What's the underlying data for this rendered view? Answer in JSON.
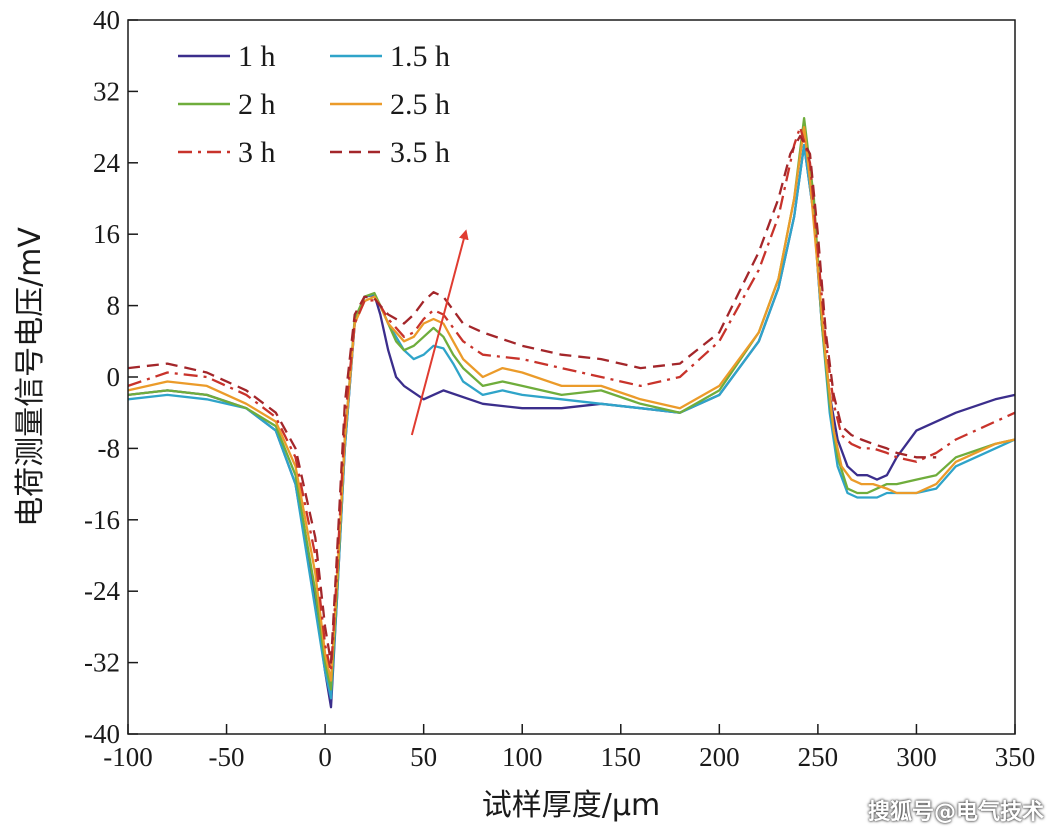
{
  "chart_data": {
    "type": "line",
    "title": "",
    "xlabel": "试样厚度/μm",
    "ylabel": "电荷测量信号电压/mV",
    "xlim": [
      -100,
      350
    ],
    "ylim": [
      -40,
      40
    ],
    "xticks": [
      -100,
      -50,
      0,
      50,
      100,
      150,
      200,
      250,
      300,
      350
    ],
    "yticks": [
      -40,
      -32,
      -24,
      -16,
      -8,
      0,
      8,
      16,
      24,
      32,
      40
    ],
    "grid": false,
    "legend_position": "top-left",
    "annotations": [
      {
        "type": "arrow",
        "from": [
          44,
          -6.5
        ],
        "to": [
          71,
          16
        ],
        "color": "#e03c31"
      }
    ],
    "series": [
      {
        "name": "1 h",
        "color": "#3b2e8c",
        "style": "solid",
        "x": [
          -100,
          -80,
          -60,
          -40,
          -25,
          -15,
          -5,
          0,
          3,
          6,
          10,
          15,
          20,
          25,
          28,
          32,
          36,
          40,
          50,
          60,
          80,
          100,
          120,
          140,
          160,
          180,
          200,
          220,
          230,
          238,
          243,
          248,
          252,
          256,
          260,
          265,
          270,
          275,
          280,
          285,
          290,
          300,
          320,
          340,
          350
        ],
        "y": [
          -2,
          -1.5,
          -2,
          -3.5,
          -6,
          -12,
          -25,
          -33,
          -37,
          -25,
          -8,
          6,
          9,
          9.2,
          7,
          3,
          0,
          -1,
          -2.5,
          -1.5,
          -3,
          -3.5,
          -3.5,
          -3,
          -3.5,
          -4,
          -2,
          4,
          10,
          18,
          26,
          18,
          6,
          -2,
          -7,
          -10,
          -11,
          -11,
          -11.5,
          -11,
          -9,
          -6,
          -4,
          -2.5,
          -2
        ]
      },
      {
        "name": "1.5 h",
        "color": "#2fa4c9",
        "style": "solid",
        "x": [
          -100,
          -80,
          -60,
          -40,
          -25,
          -15,
          -5,
          0,
          3,
          6,
          10,
          15,
          20,
          25,
          28,
          32,
          36,
          40,
          45,
          50,
          55,
          60,
          65,
          70,
          80,
          90,
          100,
          120,
          140,
          160,
          180,
          200,
          220,
          230,
          238,
          243,
          248,
          252,
          256,
          260,
          265,
          270,
          275,
          280,
          285,
          290,
          300,
          310,
          320,
          340,
          350
        ],
        "y": [
          -2.5,
          -2,
          -2.5,
          -3.5,
          -6,
          -12,
          -26,
          -33,
          -36,
          -25,
          -8,
          6,
          9,
          9.3,
          8,
          6,
          4.5,
          3,
          2,
          2.5,
          3.5,
          3.2,
          1.5,
          -0.5,
          -2,
          -1.5,
          -2,
          -2.5,
          -3,
          -3.5,
          -4,
          -2,
          4,
          10,
          18,
          26,
          18,
          6,
          -4,
          -10,
          -13,
          -13.5,
          -13.5,
          -13.5,
          -13,
          -13,
          -13,
          -12.5,
          -10,
          -8,
          -7
        ]
      },
      {
        "name": "2 h",
        "color": "#6fad3c",
        "style": "solid",
        "x": [
          -100,
          -80,
          -60,
          -40,
          -25,
          -15,
          -5,
          0,
          3,
          6,
          10,
          15,
          20,
          25,
          28,
          32,
          36,
          40,
          45,
          50,
          55,
          60,
          65,
          70,
          80,
          90,
          100,
          120,
          140,
          160,
          180,
          200,
          220,
          230,
          238,
          243,
          248,
          252,
          256,
          260,
          265,
          270,
          275,
          280,
          285,
          290,
          300,
          310,
          320,
          340,
          350
        ],
        "y": [
          -2,
          -1.5,
          -2,
          -3.5,
          -5.5,
          -11,
          -24,
          -32,
          -35,
          -24,
          -7,
          6.5,
          9,
          9.4,
          8,
          6,
          4,
          3,
          3.5,
          4.5,
          5.5,
          4.5,
          2.5,
          1,
          -1,
          -0.5,
          -1,
          -2,
          -1.5,
          -3,
          -4,
          -1.5,
          5,
          11,
          20,
          29,
          20,
          6,
          -3,
          -9,
          -12.5,
          -13,
          -13,
          -12.5,
          -12,
          -12,
          -11.5,
          -11,
          -9,
          -7.5,
          -7
        ]
      },
      {
        "name": "2.5 h",
        "color": "#eb9b2a",
        "style": "solid",
        "x": [
          -100,
          -80,
          -60,
          -40,
          -25,
          -15,
          -5,
          0,
          3,
          6,
          10,
          15,
          20,
          25,
          28,
          32,
          36,
          40,
          45,
          50,
          55,
          60,
          65,
          70,
          80,
          90,
          100,
          120,
          140,
          160,
          180,
          200,
          220,
          230,
          238,
          243,
          246,
          250,
          254,
          258,
          262,
          267,
          272,
          278,
          285,
          290,
          300,
          310,
          320,
          340,
          350
        ],
        "y": [
          -1.5,
          -0.5,
          -1,
          -3,
          -5,
          -10,
          -22,
          -31,
          -34,
          -23,
          -7,
          6,
          8.5,
          9,
          8,
          6,
          5,
          4,
          4.5,
          6,
          6.5,
          6,
          4,
          2,
          0,
          1,
          0.5,
          -1,
          -1,
          -2.5,
          -3.5,
          -1,
          5,
          11,
          20,
          28,
          22,
          12,
          2,
          -6,
          -10,
          -11.5,
          -12,
          -12,
          -12.5,
          -13,
          -13,
          -12,
          -9.5,
          -7.5,
          -7
        ]
      },
      {
        "name": "3 h",
        "color": "#c8332b",
        "style": "dashdot",
        "x": [
          -100,
          -80,
          -60,
          -40,
          -25,
          -15,
          -5,
          0,
          3,
          6,
          10,
          15,
          20,
          25,
          28,
          32,
          36,
          40,
          45,
          50,
          55,
          60,
          65,
          70,
          80,
          100,
          120,
          140,
          160,
          180,
          200,
          220,
          230,
          238,
          241,
          246,
          250,
          254,
          258,
          262,
          267,
          272,
          278,
          285,
          290,
          300,
          310,
          320,
          340,
          350
        ],
        "y": [
          -1,
          0.5,
          0,
          -2,
          -4.5,
          -9,
          -20,
          -30,
          -33,
          -22,
          -5,
          6,
          8.5,
          8.6,
          8,
          6.5,
          5.5,
          4.5,
          5,
          6.5,
          7.5,
          7,
          5.5,
          4,
          2.5,
          2,
          1,
          0,
          -1,
          0,
          4,
          12,
          18,
          26,
          28,
          24,
          14,
          4,
          -3,
          -6.5,
          -7.5,
          -8,
          -8,
          -8.5,
          -9,
          -9.5,
          -8.5,
          -7,
          -5,
          -4
        ]
      },
      {
        "name": "3.5 h",
        "color": "#a3262a",
        "style": "dashed",
        "x": [
          -100,
          -80,
          -60,
          -40,
          -25,
          -15,
          -5,
          0,
          3,
          6,
          10,
          15,
          20,
          25,
          28,
          32,
          36,
          40,
          45,
          50,
          55,
          60,
          65,
          70,
          80,
          100,
          120,
          140,
          160,
          180,
          200,
          220,
          230,
          236,
          241,
          246,
          250,
          254,
          258,
          262,
          267,
          272,
          278,
          285,
          290,
          300,
          310
        ],
        "y": [
          1,
          1.5,
          0.5,
          -1.5,
          -4,
          -8,
          -18,
          -28,
          -32,
          -20,
          -3,
          7,
          9,
          8.8,
          8,
          7,
          6.5,
          6,
          7,
          8.5,
          9.5,
          9,
          7.5,
          6,
          5,
          3.5,
          2.5,
          2,
          1,
          1.5,
          5,
          14,
          20,
          25,
          27,
          25,
          16,
          5,
          -2,
          -5.5,
          -6.5,
          -7,
          -7.5,
          -8,
          -8.5,
          -9,
          -9
        ]
      }
    ]
  },
  "watermark": "搜狐号@电气技术"
}
